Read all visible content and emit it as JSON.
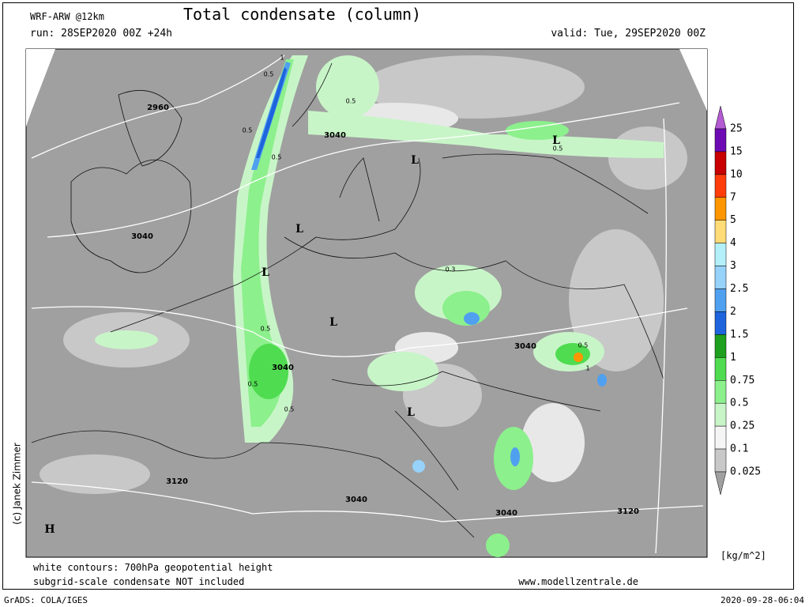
{
  "header": {
    "model": "WRF-ARW @12km",
    "title": "Total condensate (column)",
    "run": "run: 28SEP2020 00Z +24h",
    "valid": "valid: Tue, 29SEP2020 00Z"
  },
  "colorbar": {
    "labels": [
      "25",
      "15",
      "10",
      "7",
      "5",
      "4",
      "3",
      "2.5",
      "2",
      "1.5",
      "1",
      "0.75",
      "0.5",
      "0.25",
      "0.1",
      "0.025"
    ],
    "colors": [
      "#b45ad2",
      "#6e0ab4",
      "#c80000",
      "#ff3c0a",
      "#ff9600",
      "#ffdc78",
      "#b4f0fa",
      "#96d2fa",
      "#50a0f0",
      "#1e64dc",
      "#1ea01e",
      "#50dc50",
      "#8cf08c",
      "#c8f5c8",
      "#f5f5f5",
      "#c8c8c8",
      "#a0a0a0"
    ],
    "unit": "[kg/m^2]"
  },
  "map": {
    "height_labels": [
      "2960",
      "3040",
      "3040",
      "3040",
      "3040",
      "3120",
      "3040",
      "3040",
      "3120"
    ],
    "condensate_labels": [
      "1",
      "0.5",
      "0.5",
      "0.5",
      "0.5",
      "0.5",
      "0.5",
      "0.5",
      "0.5",
      "0.5",
      "1",
      "0.3"
    ],
    "centers": [
      "L",
      "L",
      "L",
      "L",
      "L",
      "L",
      "H"
    ],
    "credit": "(c) Janek Zimmer"
  },
  "footer": {
    "note1": "white contours: 700hPa geopotential height",
    "note2": "subgrid-scale condensate NOT included",
    "site": "www.modellzentrale.de",
    "grads": "GrADS: COLA/IGES",
    "timestamp": "2020-09-28-06:04"
  }
}
